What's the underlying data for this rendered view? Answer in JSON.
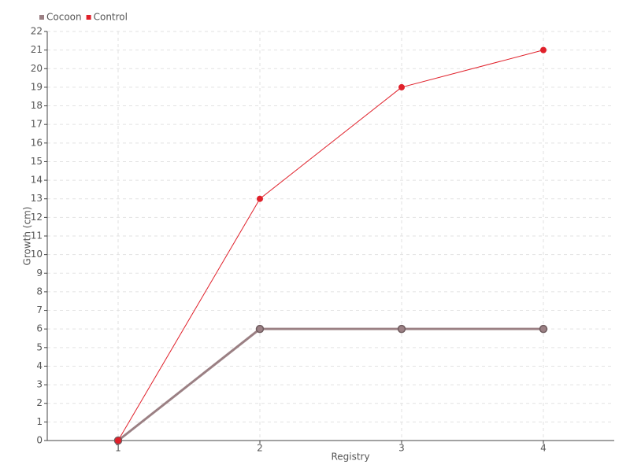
{
  "chart_data": {
    "type": "line",
    "x_label": "Registry",
    "y_label": "Growth (cm)",
    "x": [
      1,
      2,
      3,
      4
    ],
    "xlim": [
      0.5,
      4.5
    ],
    "xticks": [
      1,
      2,
      3,
      4
    ],
    "ylim": [
      0,
      22
    ],
    "yticks": [
      0,
      1,
      2,
      3,
      4,
      5,
      6,
      7,
      8,
      9,
      10,
      11,
      12,
      13,
      14,
      15,
      16,
      17,
      18,
      19,
      20,
      21,
      22
    ],
    "grid": true,
    "legend": "top-left",
    "series": [
      {
        "name": "Cocoon",
        "color": "#9b8084",
        "values": [
          0,
          6,
          6,
          6
        ]
      },
      {
        "name": "Control",
        "color": "#e0202a",
        "values": [
          0,
          13,
          19,
          21
        ]
      }
    ]
  }
}
